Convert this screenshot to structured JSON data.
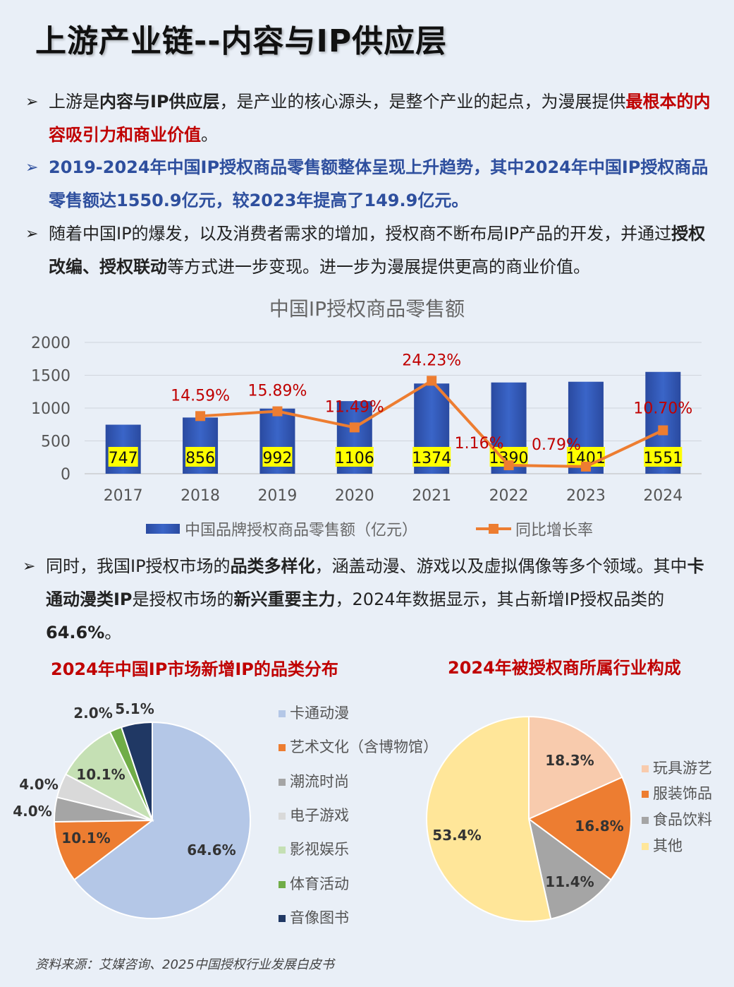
{
  "title": "上游产业链--内容与IP供应层",
  "bullets": {
    "b1": {
      "p1": "上游是",
      "p2": "内容与IP供应层",
      "p3": "，是产业的核心源头，是整个产业的起点，为漫展提供",
      "p4": "最根本的内容吸引力和商业价值",
      "p5": "。"
    },
    "b2": {
      "text": "2019-2024年中国IP授权商品零售额整体呈现上升趋势，其中2024年中国IP授权商品零售额达1550.9亿元，较2023年提高了149.9亿元。"
    },
    "b3": {
      "p1": "随着中国IP的爆发，以及消费者需求的增加，授权商不断布局IP产品的开发，并通过",
      "p2": "授权改编、授权联动",
      "p3": "等方式进一步变现。进一步为漫展提供更高的商业价值。"
    },
    "b4": {
      "p1": "同时，我国IP授权市场的",
      "p2": "品类多样化",
      "p3": "，涵盖动漫、游戏以及虚拟偶像等多个领域。其中",
      "p4": "卡通动漫类IP",
      "p5": "是授权市场的",
      "p6": "新兴重要主力",
      "p7": "，2024年数据显示，其占新增IP授权品类的",
      "p8": "64.6%",
      "p9": "。"
    }
  },
  "chart_data": [
    {
      "type": "bar",
      "title": "中国IP授权商品零售额",
      "categories": [
        "2017",
        "2018",
        "2019",
        "2020",
        "2021",
        "2022",
        "2023",
        "2024"
      ],
      "ylim": [
        0,
        2000
      ],
      "yticks": [
        "0",
        "500",
        "1000",
        "1500",
        "2000"
      ],
      "series": [
        {
          "name": "中国品牌授权商品零售额（亿元）",
          "kind": "bar",
          "color": "#2f55b0",
          "values": [
            747,
            856,
            992,
            1106,
            1374,
            1390,
            1401,
            1551
          ],
          "labels": [
            "747",
            "856",
            "992",
            "1106",
            "1374",
            "1390",
            "1401",
            "1551"
          ]
        },
        {
          "name": "同比增长率",
          "kind": "line",
          "color": "#ed7d31",
          "values": [
            null,
            14.59,
            15.89,
            11.49,
            24.23,
            1.16,
            0.79,
            10.7
          ],
          "labels": [
            "",
            "14.59%",
            "15.89%",
            "11.49%",
            "24.23%",
            "1.16%",
            "0.79%",
            "10.70%"
          ]
        }
      ]
    },
    {
      "type": "pie",
      "title": "2024年中国IP市场新增IP的品类分布",
      "slices": [
        {
          "name": "卡通动漫",
          "value": 64.6,
          "label": "64.6%",
          "color": "#b4c7e7"
        },
        {
          "name": "艺术文化（含博物馆）",
          "value": 10.1,
          "label": "10.1%",
          "color": "#ed7d31"
        },
        {
          "name": "潮流时尚",
          "value": 4.0,
          "label": "4.0%",
          "color": "#a5a5a5"
        },
        {
          "name": "电子游戏",
          "value": 4.0,
          "label": "4.0%",
          "color": "#d9d9d9"
        },
        {
          "name": "影视娱乐",
          "value": 10.1,
          "label": "10.1%",
          "color": "#c5e0b4"
        },
        {
          "name": "体育活动",
          "value": 2.0,
          "label": "2.0%",
          "color": "#70ad47"
        },
        {
          "name": "音像图书",
          "value": 5.1,
          "label": "5.1%",
          "color": "#203864"
        }
      ]
    },
    {
      "type": "pie",
      "title": "2024年被授权商所属行业构成",
      "slices": [
        {
          "name": "玩具游艺",
          "value": 18.3,
          "label": "18.3%",
          "color": "#f8cbad"
        },
        {
          "name": "服装饰品",
          "value": 16.8,
          "label": "16.8%",
          "color": "#ed7d31"
        },
        {
          "name": "食品饮料",
          "value": 11.4,
          "label": "11.4%",
          "color": "#a5a5a5"
        },
        {
          "name": "其他",
          "value": 53.4,
          "label": "53.4%",
          "color": "#ffe699"
        }
      ]
    }
  ],
  "source": "资料来源：艾媒咨询、2025中国授权行业发展白皮书"
}
